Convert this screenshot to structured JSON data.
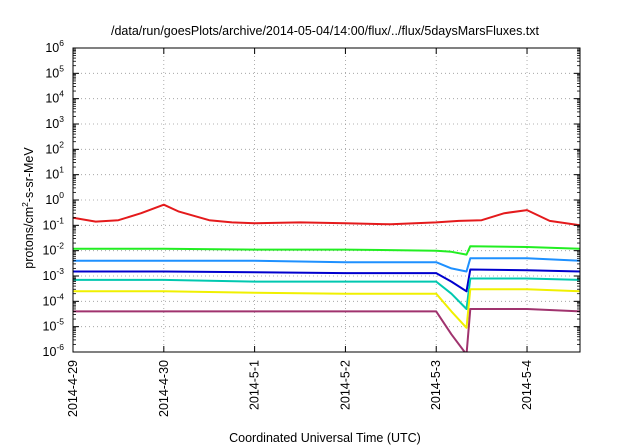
{
  "chart_data": {
    "type": "line",
    "title": "/data/run/goesPlots/archive/2014-05-04/14:00/flux/../flux/5daysMarsFluxes.txt",
    "xlabel": "Coordinated Universal Time (UTC)",
    "ylabel_main": "protons/cm",
    "ylabel_sup": "2",
    "ylabel_rest": "-s-sr-MeV",
    "y_scale": "log",
    "ylim": [
      1e-06,
      1000000.0
    ],
    "y_ticks": [
      {
        "base": "10",
        "exp": "-6"
      },
      {
        "base": "10",
        "exp": "-5"
      },
      {
        "base": "10",
        "exp": "-4"
      },
      {
        "base": "10",
        "exp": "-3"
      },
      {
        "base": "10",
        "exp": "-2"
      },
      {
        "base": "10",
        "exp": "-1"
      },
      {
        "base": "10",
        "exp": "0"
      },
      {
        "base": "10",
        "exp": "1"
      },
      {
        "base": "10",
        "exp": "2"
      },
      {
        "base": "10",
        "exp": "3"
      },
      {
        "base": "10",
        "exp": "4"
      },
      {
        "base": "10",
        "exp": "5"
      },
      {
        "base": "10",
        "exp": "6"
      }
    ],
    "x_start": "2014-4-29",
    "x_end": "2014-5-4 14:00",
    "x_ticks": [
      "2014-4-29",
      "2014-4-30",
      "2014-5-1",
      "2014-5-2",
      "2014-5-3",
      "2014-5-4"
    ],
    "grid": true,
    "legend": "none",
    "series": [
      {
        "color": "#e41a1c",
        "x": [
          "2014-4-29 00:00",
          "2014-4-29 06:00",
          "2014-4-29 12:00",
          "2014-4-29 18:00",
          "2014-4-30 00:00",
          "2014-4-30 04:00",
          "2014-4-30 12:00",
          "2014-4-30 18:00",
          "2014-5-1 00:00",
          "2014-5-1 12:00",
          "2014-5-2 00:00",
          "2014-5-2 12:00",
          "2014-5-3 00:00",
          "2014-5-3 06:00",
          "2014-5-3 12:00",
          "2014-5-3 18:00",
          "2014-5-4 00:00",
          "2014-5-4 06:00",
          "2014-5-4 14:00"
        ],
        "y": [
          0.2,
          0.14,
          0.16,
          0.3,
          0.65,
          0.35,
          0.16,
          0.13,
          0.12,
          0.13,
          0.12,
          0.11,
          0.13,
          0.15,
          0.16,
          0.3,
          0.4,
          0.15,
          0.1
        ]
      },
      {
        "color": "#22ee22",
        "x": [
          "2014-4-29 00:00",
          "2014-4-30 00:00",
          "2014-5-1 00:00",
          "2014-5-2 00:00",
          "2014-5-3 00:00",
          "2014-5-3 04:00",
          "2014-5-3 08:00",
          "2014-5-3 09:00",
          "2014-5-4 00:00",
          "2014-5-4 14:00"
        ],
        "y": [
          0.012,
          0.012,
          0.011,
          0.011,
          0.01,
          0.009,
          0.007,
          0.015,
          0.014,
          0.012
        ]
      },
      {
        "color": "#1e90ff",
        "x": [
          "2014-4-29 00:00",
          "2014-4-30 00:00",
          "2014-5-1 00:00",
          "2014-5-2 00:00",
          "2014-5-3 00:00",
          "2014-5-3 04:00",
          "2014-5-3 08:00",
          "2014-5-3 09:00",
          "2014-5-4 00:00",
          "2014-5-4 14:00"
        ],
        "y": [
          0.004,
          0.004,
          0.004,
          0.0035,
          0.0035,
          0.002,
          0.0015,
          0.005,
          0.005,
          0.004
        ]
      },
      {
        "color": "#0000cd",
        "x": [
          "2014-4-29 00:00",
          "2014-4-30 00:00",
          "2014-5-1 00:00",
          "2014-5-2 00:00",
          "2014-5-3 00:00",
          "2014-5-3 04:00",
          "2014-5-3 08:00",
          "2014-5-3 09:00",
          "2014-5-4 00:00",
          "2014-5-4 14:00"
        ],
        "y": [
          0.0015,
          0.0015,
          0.0014,
          0.0013,
          0.0013,
          0.0006,
          0.00025,
          0.0018,
          0.0017,
          0.0015
        ]
      },
      {
        "color": "#00c8b0",
        "x": [
          "2014-4-29 00:00",
          "2014-4-30 00:00",
          "2014-5-1 00:00",
          "2014-5-2 00:00",
          "2014-5-3 00:00",
          "2014-5-3 04:00",
          "2014-5-3 08:00",
          "2014-5-3 09:00",
          "2014-5-4 00:00",
          "2014-5-4 14:00"
        ],
        "y": [
          0.0007,
          0.0007,
          0.0006,
          0.0006,
          0.0006,
          0.0002,
          5e-05,
          0.0008,
          0.0008,
          0.0007
        ]
      },
      {
        "color": "#f0f000",
        "x": [
          "2014-4-29 00:00",
          "2014-4-30 00:00",
          "2014-5-1 00:00",
          "2014-5-2 00:00",
          "2014-5-3 00:00",
          "2014-5-3 04:00",
          "2014-5-3 08:00",
          "2014-5-3 09:00",
          "2014-5-4 00:00",
          "2014-5-4 14:00"
        ],
        "y": [
          0.00025,
          0.00025,
          0.00022,
          0.0002,
          0.0002,
          4e-05,
          9e-06,
          0.0003,
          0.0003,
          0.00025
        ]
      },
      {
        "color": "#a0336e",
        "x": [
          "2014-4-29 00:00",
          "2014-4-30 00:00",
          "2014-5-1 00:00",
          "2014-5-2 00:00",
          "2014-5-3 00:00",
          "2014-5-3 04:00",
          "2014-5-3 08:00",
          "2014-5-3 09:00",
          "2014-5-4 00:00",
          "2014-5-4 14:00"
        ],
        "y": [
          4e-05,
          4e-05,
          4e-05,
          4e-05,
          4e-05,
          5e-06,
          8e-07,
          5e-05,
          5e-05,
          4e-05
        ]
      }
    ]
  }
}
